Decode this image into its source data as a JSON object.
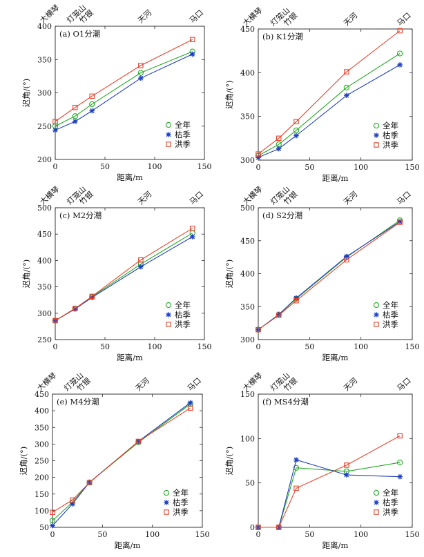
{
  "figure": {
    "legend_labels": [
      "全年",
      "枯季",
      "洪季"
    ],
    "colors": {
      "全年": "#22aa22",
      "枯季": "#1f3fbf",
      "洪季": "#e8412a"
    }
  },
  "chart_data": [
    {
      "type": "line",
      "panel": "(a)",
      "title": "(a) O1分潮",
      "xlabel": "距离/m",
      "ylabel": "迟角/(°)",
      "xlim": [
        0,
        150
      ],
      "ylim": [
        200,
        400
      ],
      "xticks": [
        0,
        50,
        100,
        150
      ],
      "yticks": [
        200,
        250,
        300,
        350,
        400
      ],
      "x": [
        0,
        20,
        37,
        86,
        138
      ],
      "site_labels": [
        "大横琴",
        "灯笼山",
        "竹银",
        "天河",
        "马口"
      ],
      "legend_position": "lower-right",
      "grid": false,
      "series": [
        {
          "name": "全年",
          "marker": "circle",
          "values": [
            250,
            265,
            283,
            330,
            362
          ]
        },
        {
          "name": "枯季",
          "marker": "star",
          "values": [
            244,
            257,
            273,
            322,
            358
          ]
        },
        {
          "name": "洪季",
          "marker": "square",
          "values": [
            257,
            278,
            295,
            341,
            380
          ]
        }
      ]
    },
    {
      "type": "line",
      "panel": "(b)",
      "title": "(b) K1分潮",
      "xlabel": "距离/m",
      "ylabel": "迟角/(°)",
      "xlim": [
        0,
        150
      ],
      "ylim": [
        300,
        450
      ],
      "xticks": [
        0,
        50,
        100,
        150
      ],
      "yticks": [
        300,
        350,
        400,
        450
      ],
      "x": [
        0,
        20,
        37,
        86,
        138
      ],
      "site_labels": [
        "大横琴",
        "灯笼山",
        "竹银",
        "天河",
        "马口"
      ],
      "legend_position": "lower-right",
      "grid": false,
      "series": [
        {
          "name": "全年",
          "marker": "circle",
          "values": [
            305,
            318,
            334,
            383,
            422
          ]
        },
        {
          "name": "枯季",
          "marker": "star",
          "values": [
            303,
            313,
            328,
            374,
            409
          ]
        },
        {
          "name": "洪季",
          "marker": "square",
          "values": [
            307,
            325,
            344,
            401,
            448
          ]
        }
      ]
    },
    {
      "type": "line",
      "panel": "(c)",
      "title": "(c) M2分潮",
      "xlabel": "距离/m",
      "ylabel": "迟角/(°)",
      "xlim": [
        0,
        150
      ],
      "ylim": [
        250,
        500
      ],
      "xticks": [
        0,
        50,
        100,
        150
      ],
      "yticks": [
        250,
        300,
        350,
        400,
        450,
        500
      ],
      "x": [
        0,
        20,
        37,
        86,
        138
      ],
      "site_labels": [
        "大横琴",
        "灯笼山",
        "竹银",
        "天河",
        "马口"
      ],
      "legend_position": "lower-right",
      "grid": false,
      "series": [
        {
          "name": "全年",
          "marker": "circle",
          "values": [
            286,
            309,
            331,
            393,
            452
          ]
        },
        {
          "name": "枯季",
          "marker": "star",
          "values": [
            286,
            308,
            330,
            388,
            445
          ]
        },
        {
          "name": "洪季",
          "marker": "square",
          "values": [
            286,
            309,
            332,
            401,
            461
          ]
        }
      ]
    },
    {
      "type": "line",
      "panel": "(d)",
      "title": "(d) S2分潮",
      "xlabel": "距离/m",
      "ylabel": "迟角/(°)",
      "xlim": [
        0,
        150
      ],
      "ylim": [
        300,
        500
      ],
      "xticks": [
        0,
        50,
        100,
        150
      ],
      "yticks": [
        300,
        350,
        400,
        450,
        500
      ],
      "x": [
        0,
        20,
        37,
        86,
        138
      ],
      "site_labels": [
        "大横琴",
        "灯笼山",
        "竹银",
        "天河",
        "马口"
      ],
      "legend_position": "lower-right",
      "grid": false,
      "series": [
        {
          "name": "全年",
          "marker": "circle",
          "values": [
            315,
            338,
            362,
            425,
            481
          ]
        },
        {
          "name": "枯季",
          "marker": "star",
          "values": [
            315,
            338,
            363,
            426,
            479
          ]
        },
        {
          "name": "洪季",
          "marker": "square",
          "values": [
            315,
            337,
            359,
            421,
            478
          ]
        }
      ]
    },
    {
      "type": "line",
      "panel": "(e)",
      "title": "(e) M4分潮",
      "xlabel": "距离/m",
      "ylabel": "迟角/(°)",
      "xlim": [
        0,
        150
      ],
      "ylim": [
        50,
        450
      ],
      "xticks": [
        0,
        50,
        100,
        150
      ],
      "yticks": [
        50,
        100,
        150,
        200,
        250,
        300,
        350,
        400,
        450
      ],
      "x": [
        0,
        20,
        37,
        86,
        138
      ],
      "site_labels": [
        "大横琴",
        "灯笼山",
        "竹银",
        "天河",
        "马口"
      ],
      "legend_position": "lower-right",
      "grid": false,
      "series": [
        {
          "name": "全年",
          "marker": "circle",
          "values": [
            70,
            125,
            185,
            305,
            420
          ]
        },
        {
          "name": "枯季",
          "marker": "star",
          "values": [
            55,
            120,
            185,
            308,
            424
          ]
        },
        {
          "name": "洪季",
          "marker": "square",
          "values": [
            95,
            132,
            184,
            308,
            408
          ]
        }
      ]
    },
    {
      "type": "line",
      "panel": "(f)",
      "title": "(f) MS4分潮",
      "xlabel": "距离/m",
      "ylabel": "迟角/(°)",
      "xlim": [
        0,
        150
      ],
      "ylim": [
        0,
        150
      ],
      "xticks": [
        0,
        50,
        100,
        150
      ],
      "yticks": [
        0,
        50,
        100,
        150
      ],
      "x": [
        0,
        20,
        37,
        86,
        138
      ],
      "site_labels": [
        "大横琴",
        "灯笼山",
        "竹银",
        "天河",
        "马口"
      ],
      "legend_position": "lower-right",
      "grid": false,
      "series": [
        {
          "name": "全年",
          "marker": "circle",
          "values": [
            0,
            0,
            67,
            63,
            73
          ]
        },
        {
          "name": "枯季",
          "marker": "star",
          "values": [
            0,
            0,
            76,
            59,
            57
          ]
        },
        {
          "name": "洪季",
          "marker": "square",
          "values": [
            0,
            0,
            44,
            70,
            103
          ]
        }
      ]
    }
  ]
}
